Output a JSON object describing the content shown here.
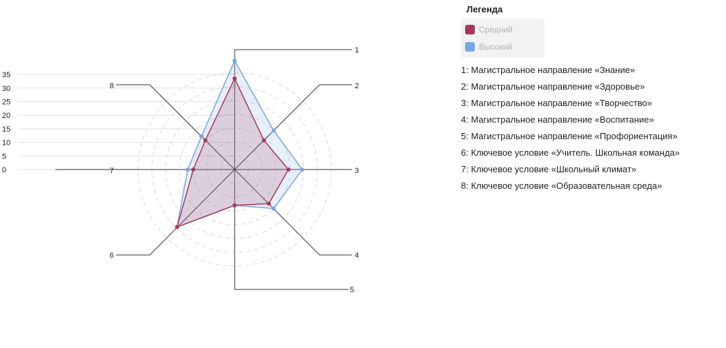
{
  "chart_data": {
    "type": "radar",
    "axes": [
      "1",
      "2",
      "3",
      "4",
      "5",
      "6",
      "7",
      "8"
    ],
    "axis_descriptions": [
      "1: Магистральное направление «Знание»",
      "2: Магистральное направление «Здоровье»",
      "3: Магистральное направление «Творчество»",
      "4: Магистральное направление «Воспитание»",
      "5: Магистральное направление «Профориентация»",
      "6: Ключевое условие «Учитель. Школьная команда»",
      "7: Ключевое условие «Школьный климат»",
      "8: Ключевое условие «Образовательная среда»"
    ],
    "scale_ticks": [
      "0",
      "5",
      "10",
      "15",
      "20",
      "25",
      "30",
      "35"
    ],
    "rmax": 35,
    "series": [
      {
        "name": "Средний",
        "color": "#a8385a",
        "values": [
          33,
          15,
          19.5,
          17.5,
          13,
          29.5,
          15,
          15
        ]
      },
      {
        "name": "Высокий",
        "color": "#7aa5e6",
        "values": [
          39.5,
          20,
          24.5,
          20,
          13,
          29.5,
          17,
          17
        ]
      }
    ],
    "legend": {
      "title": "Легенда",
      "placement": "right"
    },
    "grid": true
  }
}
